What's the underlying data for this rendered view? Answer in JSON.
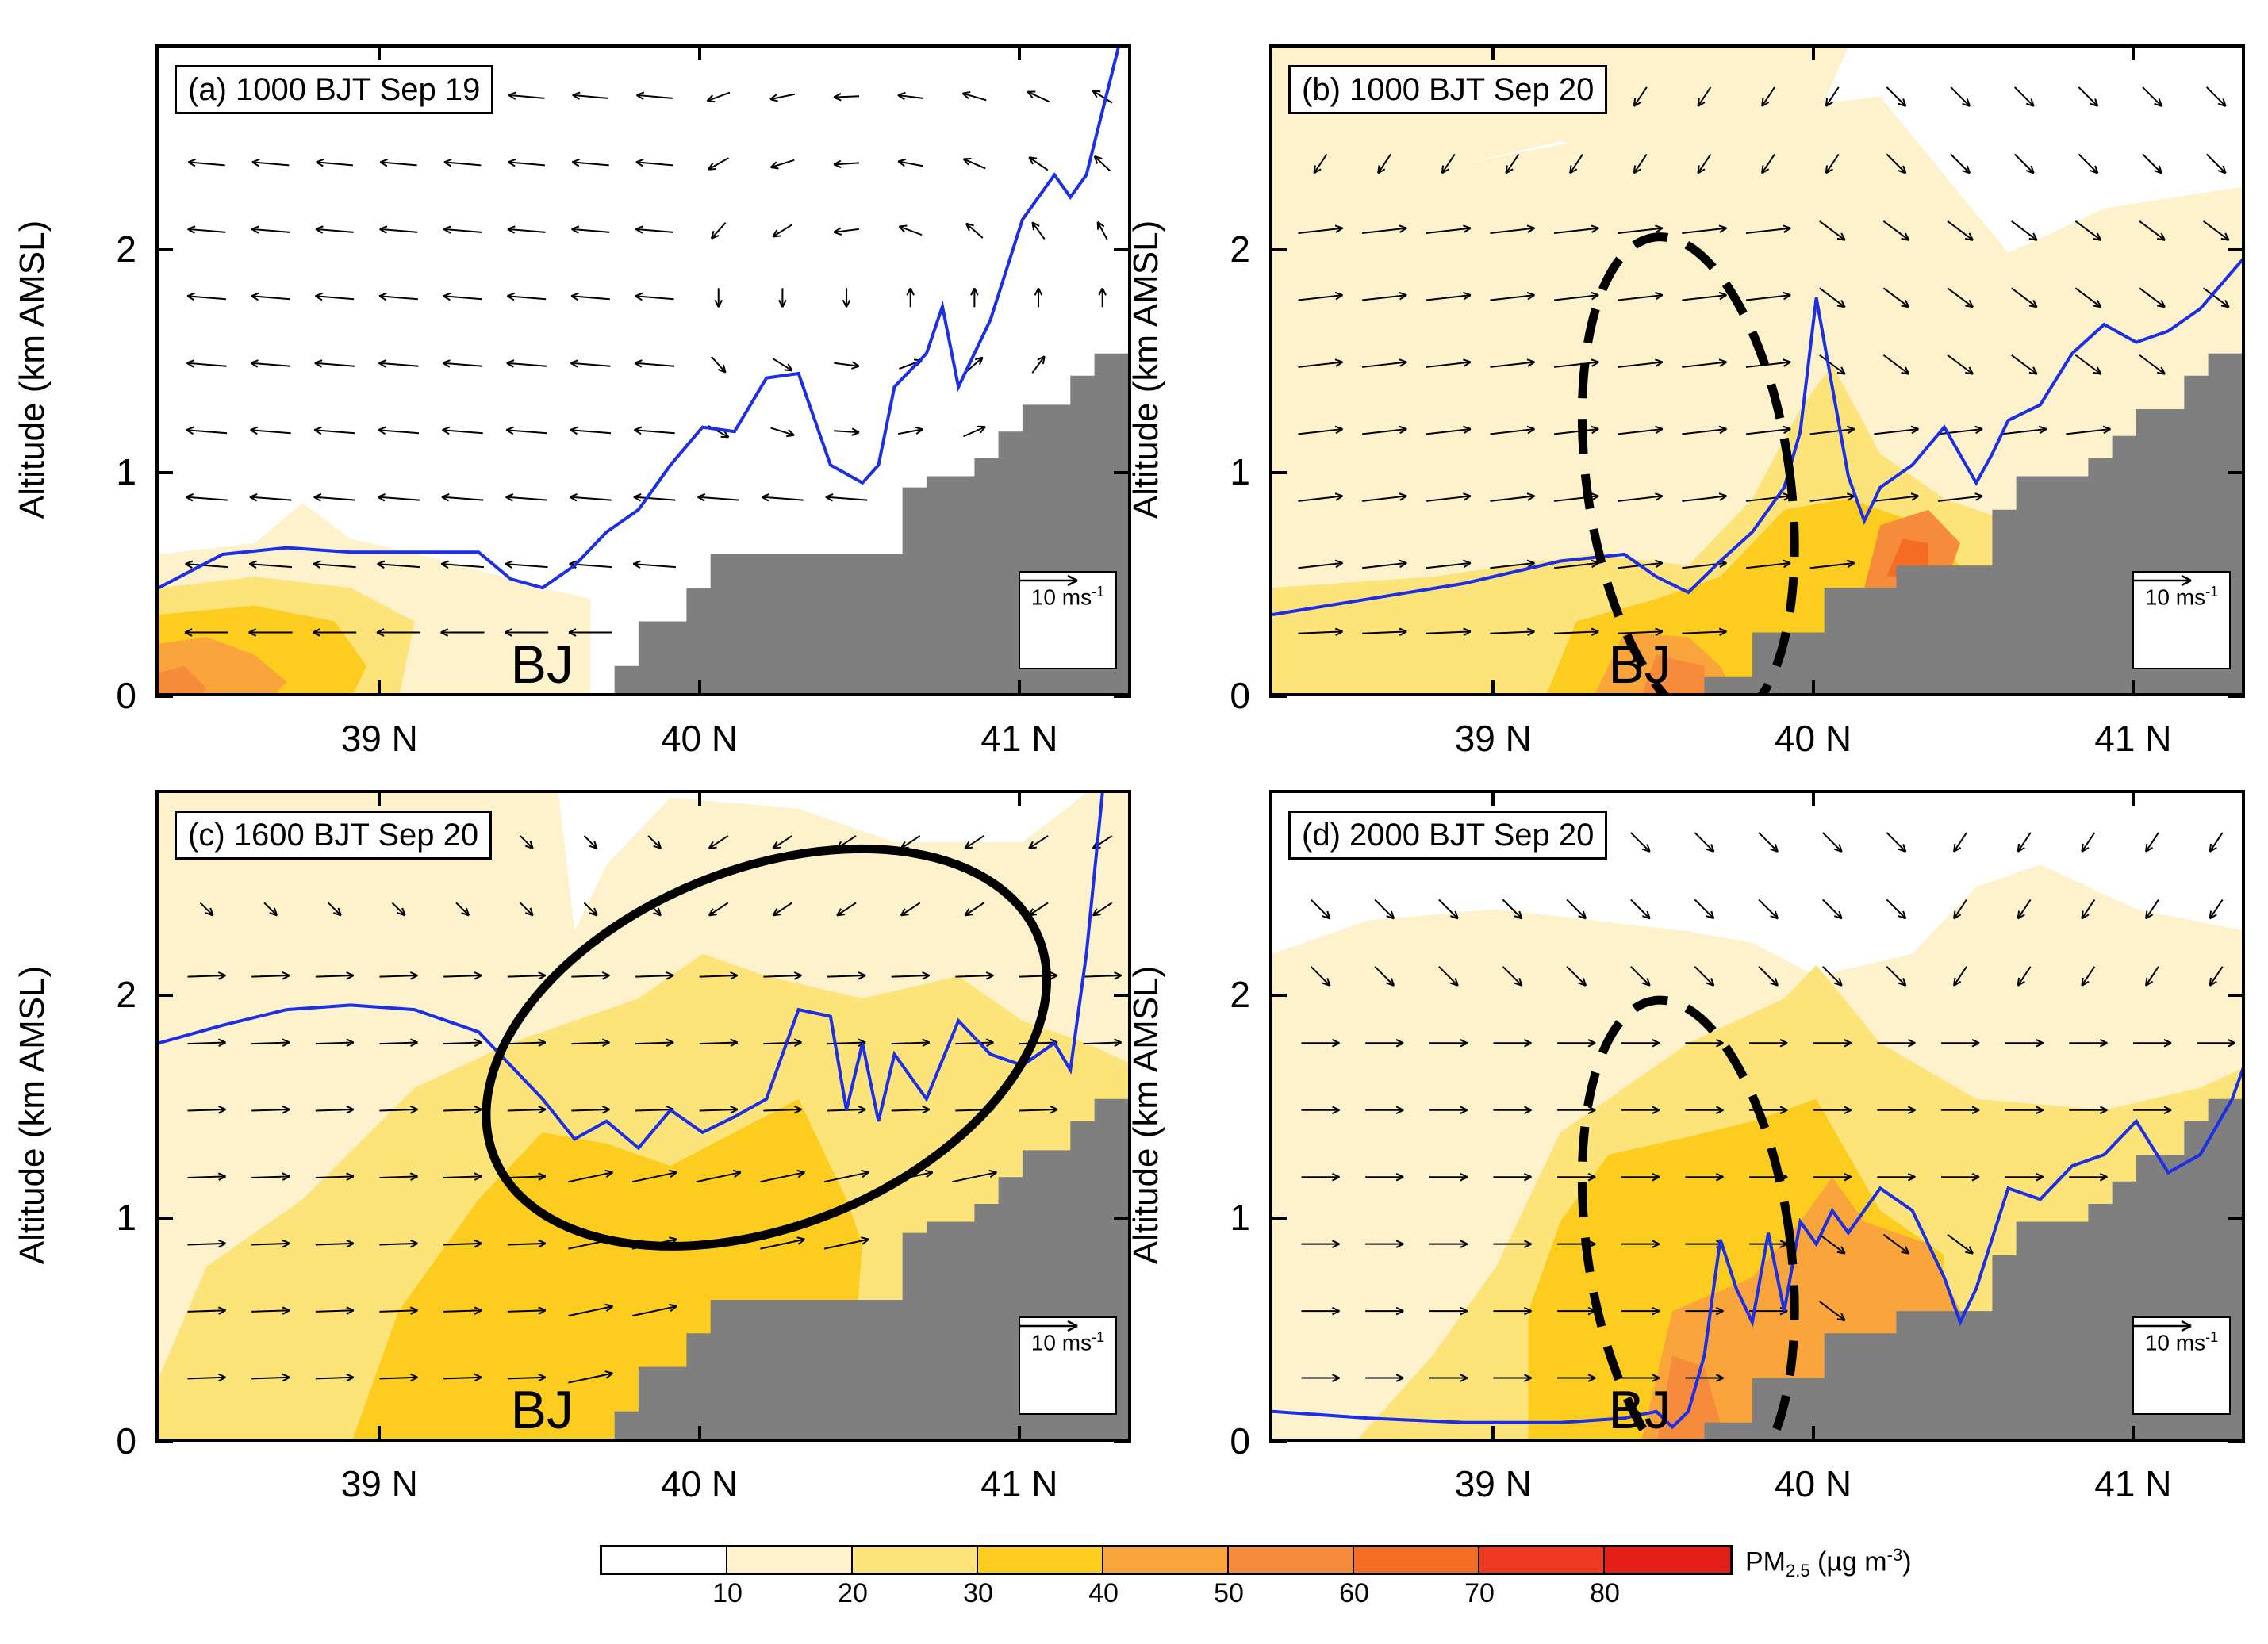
{
  "chart_data": [
    {
      "type": "heatmap",
      "panel": "a",
      "title": "(a) 1000 BJT Sep 19",
      "ylabel": "Altitude (km AMSL)",
      "xlabel": "",
      "x_ticks": [
        "39 N",
        "40 N",
        "41 N"
      ],
      "y_ticks": [
        "0",
        "1",
        "2"
      ],
      "xlim": [
        38.3,
        41.35
      ],
      "ylim": [
        0,
        2.92
      ],
      "site_label": "BJ",
      "wind_scale": {
        "label": "10 ms",
        "exp": "-1"
      },
      "pbl_height": {
        "name": "Boundary layer height",
        "x": [
          38.3,
          38.5,
          38.7,
          38.9,
          39.1,
          39.3,
          39.4,
          39.5,
          39.6,
          39.7,
          39.8,
          39.9,
          40.0,
          40.1,
          40.2,
          40.3,
          40.4,
          40.5,
          40.55,
          40.6,
          40.7,
          40.75,
          40.8,
          40.9,
          41.0,
          41.1,
          41.15,
          41.2,
          41.3
        ],
        "y": [
          0.5,
          0.65,
          0.68,
          0.66,
          0.66,
          0.66,
          0.54,
          0.5,
          0.6,
          0.75,
          0.85,
          1.05,
          1.22,
          1.2,
          1.44,
          1.46,
          1.05,
          0.97,
          1.05,
          1.4,
          1.55,
          1.76,
          1.4,
          1.7,
          2.15,
          2.35,
          2.25,
          2.35,
          2.92
        ]
      },
      "terrain": {
        "x": [
          38.3,
          39.7,
          39.8,
          39.9,
          40.0,
          40.3,
          40.5,
          40.6,
          40.7,
          40.8,
          40.9,
          41.0,
          41.1,
          41.2,
          41.35
        ],
        "y": [
          0,
          0.15,
          0.35,
          0.5,
          0.65,
          0.65,
          0.65,
          0.95,
          1.0,
          1.08,
          1.2,
          1.32,
          1.45,
          1.55,
          1.62
        ]
      }
    },
    {
      "type": "heatmap",
      "panel": "b",
      "title": "(b) 1000 BJT Sep 20",
      "ylabel": "",
      "xlabel": "",
      "x_ticks": [
        "39 N",
        "40 N",
        "41 N"
      ],
      "y_ticks": [
        "0",
        "1",
        "2"
      ],
      "xlim": [
        38.3,
        41.35
      ],
      "ylim": [
        0,
        2.92
      ],
      "site_label": "BJ",
      "wind_scale": {
        "label": "10 ms",
        "exp": "-1"
      },
      "pbl_height": {
        "name": "Boundary layer height",
        "x": [
          38.3,
          38.6,
          38.9,
          39.2,
          39.4,
          39.5,
          39.6,
          39.7,
          39.8,
          39.9,
          39.95,
          40.0,
          40.05,
          40.1,
          40.15,
          40.2,
          40.3,
          40.4,
          40.5,
          40.55,
          40.6,
          40.7,
          40.8,
          40.9,
          41.0,
          41.1,
          41.2,
          41.35
        ],
        "y": [
          0.38,
          0.45,
          0.52,
          0.62,
          0.65,
          0.55,
          0.48,
          0.62,
          0.75,
          0.95,
          1.2,
          1.8,
          1.4,
          1.0,
          0.8,
          0.95,
          1.05,
          1.22,
          0.97,
          1.1,
          1.25,
          1.32,
          1.55,
          1.68,
          1.6,
          1.65,
          1.75,
          2.0
        ]
      },
      "terrain": {
        "x": [
          38.3,
          39.6,
          39.8,
          40.0,
          40.2,
          40.5,
          40.6,
          40.8,
          40.9,
          41.0,
          41.1,
          41.2,
          41.35
        ],
        "y": [
          0,
          0.1,
          0.3,
          0.5,
          0.6,
          0.85,
          1.0,
          1.08,
          1.18,
          1.3,
          1.45,
          1.55,
          1.62
        ]
      },
      "annotation": "dashed ellipse over Beijing"
    },
    {
      "type": "heatmap",
      "panel": "c",
      "title": "(c) 1600 BJT Sep 20",
      "ylabel": "Altitude (km AMSL)",
      "xlabel": "",
      "x_ticks": [
        "39 N",
        "40 N",
        "41 N"
      ],
      "y_ticks": [
        "0",
        "1",
        "2"
      ],
      "xlim": [
        38.3,
        41.35
      ],
      "ylim": [
        0,
        2.92
      ],
      "site_label": "BJ",
      "wind_scale": {
        "label": "10 ms",
        "exp": "-1"
      },
      "pbl_height": {
        "name": "Boundary layer height",
        "x": [
          38.3,
          38.5,
          38.7,
          38.9,
          39.1,
          39.3,
          39.5,
          39.6,
          39.7,
          39.8,
          39.9,
          40.0,
          40.1,
          40.2,
          40.3,
          40.4,
          40.45,
          40.5,
          40.55,
          40.6,
          40.7,
          40.8,
          40.9,
          41.0,
          41.1,
          41.15,
          41.2,
          41.25
        ],
        "y": [
          1.8,
          1.88,
          1.95,
          1.97,
          1.95,
          1.85,
          1.55,
          1.37,
          1.45,
          1.33,
          1.5,
          1.4,
          1.47,
          1.55,
          1.95,
          1.92,
          1.5,
          1.8,
          1.45,
          1.75,
          1.55,
          1.9,
          1.75,
          1.7,
          1.8,
          1.68,
          2.2,
          2.92
        ]
      },
      "terrain": {
        "x": [
          38.3,
          39.7,
          39.8,
          39.9,
          40.0,
          40.3,
          40.5,
          40.6,
          40.7,
          40.8,
          40.9,
          41.0,
          41.1,
          41.2,
          41.35
        ],
        "y": [
          0,
          0.15,
          0.35,
          0.5,
          0.65,
          0.65,
          0.65,
          0.95,
          1.0,
          1.08,
          1.2,
          1.32,
          1.45,
          1.55,
          1.62
        ]
      },
      "annotation": "solid ellipse over northern mountains"
    },
    {
      "type": "heatmap",
      "panel": "d",
      "title": "(d) 2000 BJT Sep 20",
      "ylabel": "Altitude (km AMSL)",
      "xlabel": "",
      "x_ticks": [
        "39 N",
        "40 N",
        "41 N"
      ],
      "y_ticks": [
        "0",
        "1",
        "2"
      ],
      "xlim": [
        38.3,
        41.35
      ],
      "ylim": [
        0,
        2.92
      ],
      "site_label": "BJ",
      "wind_scale": {
        "label": "10 ms",
        "exp": "-1"
      },
      "pbl_height": {
        "name": "Boundary layer height",
        "x": [
          38.3,
          38.6,
          38.9,
          39.2,
          39.4,
          39.5,
          39.55,
          39.6,
          39.65,
          39.7,
          39.75,
          39.8,
          39.85,
          39.9,
          39.95,
          40.0,
          40.05,
          40.1,
          40.2,
          40.3,
          40.4,
          40.45,
          40.5,
          40.6,
          40.7,
          40.8,
          40.9,
          41.0,
          41.1,
          41.2,
          41.3,
          41.35
        ],
        "y": [
          0.15,
          0.12,
          0.1,
          0.1,
          0.12,
          0.15,
          0.08,
          0.15,
          0.4,
          0.92,
          0.7,
          0.55,
          0.95,
          0.6,
          1.0,
          0.9,
          1.05,
          0.95,
          1.15,
          1.05,
          0.75,
          0.55,
          0.7,
          1.15,
          1.1,
          1.25,
          1.3,
          1.45,
          1.22,
          1.3,
          1.55,
          1.75
        ]
      },
      "terrain": {
        "x": [
          38.3,
          39.6,
          39.8,
          40.0,
          40.2,
          40.5,
          40.6,
          40.8,
          40.9,
          41.0,
          41.1,
          41.2,
          41.35
        ],
        "y": [
          0,
          0.1,
          0.3,
          0.5,
          0.6,
          0.85,
          1.0,
          1.08,
          1.18,
          1.3,
          1.45,
          1.55,
          1.62
        ]
      },
      "annotation": "dashed ellipse over Beijing"
    }
  ],
  "colorbar": {
    "title": "PM",
    "title_sub": "2.5",
    "units_pre": " (µg m",
    "units_exp": "-3",
    "units_post": ")",
    "ticks": [
      "10",
      "20",
      "30",
      "40",
      "50",
      "60",
      "70",
      "80"
    ],
    "colors": [
      "#ffffff",
      "#fdf2cc",
      "#fde47a",
      "#fccc1f",
      "#f9a53b",
      "#f78b3c",
      "#f56d22",
      "#ef3a23",
      "#e41f1a"
    ]
  },
  "colors": {
    "pbl_line": "#1c2ee6",
    "terrain": "#7f7f7f"
  }
}
